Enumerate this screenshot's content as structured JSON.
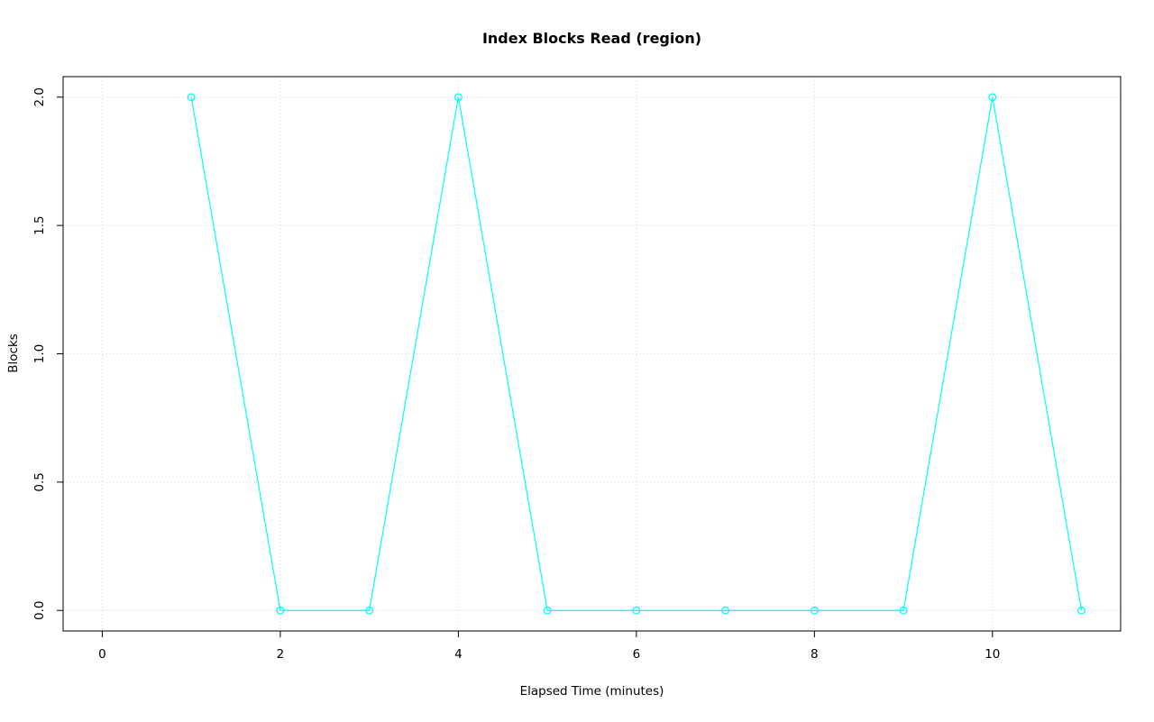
{
  "chart_data": {
    "type": "line",
    "title": "Index Blocks Read (region)",
    "xlabel": "Elapsed Time (minutes)",
    "ylabel": "Blocks",
    "x": [
      1,
      2,
      3,
      4,
      5,
      6,
      7,
      8,
      9,
      10,
      11
    ],
    "values": [
      2,
      0,
      0,
      2,
      0,
      0,
      0,
      0,
      0,
      2,
      0
    ],
    "xlim": [
      -0.44,
      11.44
    ],
    "ylim": [
      -0.08,
      2.08
    ],
    "xticks": [
      0,
      2,
      4,
      6,
      8,
      10
    ],
    "xtick_labels": [
      "0",
      "2",
      "4",
      "6",
      "8",
      "10"
    ],
    "yticks": [
      0,
      0.5,
      1,
      1.5,
      2
    ],
    "ytick_labels": [
      "0.0",
      "0.5",
      "1.0",
      "1.5",
      "2.0"
    ],
    "line_color": "#00FFFF",
    "grid": true,
    "grid_color": "#D3D3D3",
    "axis_color": "#000000",
    "marker": "open-circle",
    "background": "#FFFFFF",
    "legend": "none"
  }
}
